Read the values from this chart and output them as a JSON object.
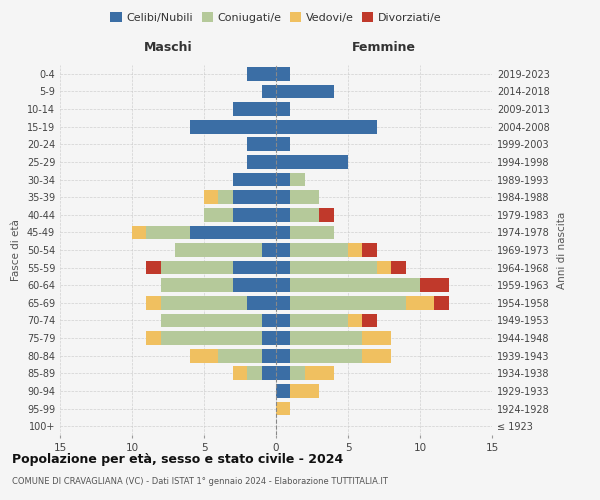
{
  "age_groups": [
    "100+",
    "95-99",
    "90-94",
    "85-89",
    "80-84",
    "75-79",
    "70-74",
    "65-69",
    "60-64",
    "55-59",
    "50-54",
    "45-49",
    "40-44",
    "35-39",
    "30-34",
    "25-29",
    "20-24",
    "15-19",
    "10-14",
    "5-9",
    "0-4"
  ],
  "birth_years": [
    "≤ 1923",
    "1924-1928",
    "1929-1933",
    "1934-1938",
    "1939-1943",
    "1944-1948",
    "1949-1953",
    "1954-1958",
    "1959-1963",
    "1964-1968",
    "1969-1973",
    "1974-1978",
    "1979-1983",
    "1984-1988",
    "1989-1993",
    "1994-1998",
    "1999-2003",
    "2004-2008",
    "2009-2013",
    "2014-2018",
    "2019-2023"
  ],
  "maschi": {
    "celibe": [
      0,
      0,
      0,
      1,
      1,
      1,
      1,
      2,
      3,
      3,
      1,
      6,
      3,
      3,
      3,
      2,
      2,
      6,
      3,
      1,
      2
    ],
    "coniugato": [
      0,
      0,
      0,
      1,
      3,
      7,
      7,
      6,
      5,
      5,
      6,
      3,
      2,
      1,
      0,
      0,
      0,
      0,
      0,
      0,
      0
    ],
    "vedovo": [
      0,
      0,
      0,
      1,
      2,
      1,
      0,
      1,
      0,
      0,
      0,
      1,
      0,
      1,
      0,
      0,
      0,
      0,
      0,
      0,
      0
    ],
    "divorziato": [
      0,
      0,
      0,
      0,
      0,
      0,
      0,
      0,
      0,
      1,
      0,
      0,
      0,
      0,
      0,
      0,
      0,
      0,
      0,
      0,
      0
    ]
  },
  "femmine": {
    "nubile": [
      0,
      0,
      1,
      1,
      1,
      1,
      1,
      1,
      1,
      1,
      1,
      1,
      1,
      1,
      1,
      5,
      1,
      7,
      1,
      4,
      1
    ],
    "coniugata": [
      0,
      0,
      0,
      1,
      5,
      5,
      4,
      8,
      9,
      6,
      4,
      3,
      2,
      2,
      1,
      0,
      0,
      0,
      0,
      0,
      0
    ],
    "vedova": [
      0,
      1,
      2,
      2,
      2,
      2,
      1,
      2,
      0,
      1,
      1,
      0,
      0,
      0,
      0,
      0,
      0,
      0,
      0,
      0,
      0
    ],
    "divorziata": [
      0,
      0,
      0,
      0,
      0,
      0,
      1,
      1,
      2,
      1,
      1,
      0,
      1,
      0,
      0,
      0,
      0,
      0,
      0,
      0,
      0
    ]
  },
  "colors": {
    "celibe": "#3b6ea5",
    "coniugato": "#b5c99a",
    "vedovo": "#f0c060",
    "divorziato": "#c0392b"
  },
  "xlim": 15,
  "title": "Popolazione per età, sesso e stato civile - 2024",
  "subtitle": "COMUNE DI CRAVAGLIANA (VC) - Dati ISTAT 1° gennaio 2024 - Elaborazione TUTTITALIA.IT",
  "ylabel_left": "Fasce di età",
  "ylabel_right": "Anni di nascita",
  "xlabel_maschi": "Maschi",
  "xlabel_femmine": "Femmine",
  "legend_labels": [
    "Celibi/Nubili",
    "Coniugati/e",
    "Vedovi/e",
    "Divorziati/e"
  ],
  "background_color": "#f5f5f5"
}
